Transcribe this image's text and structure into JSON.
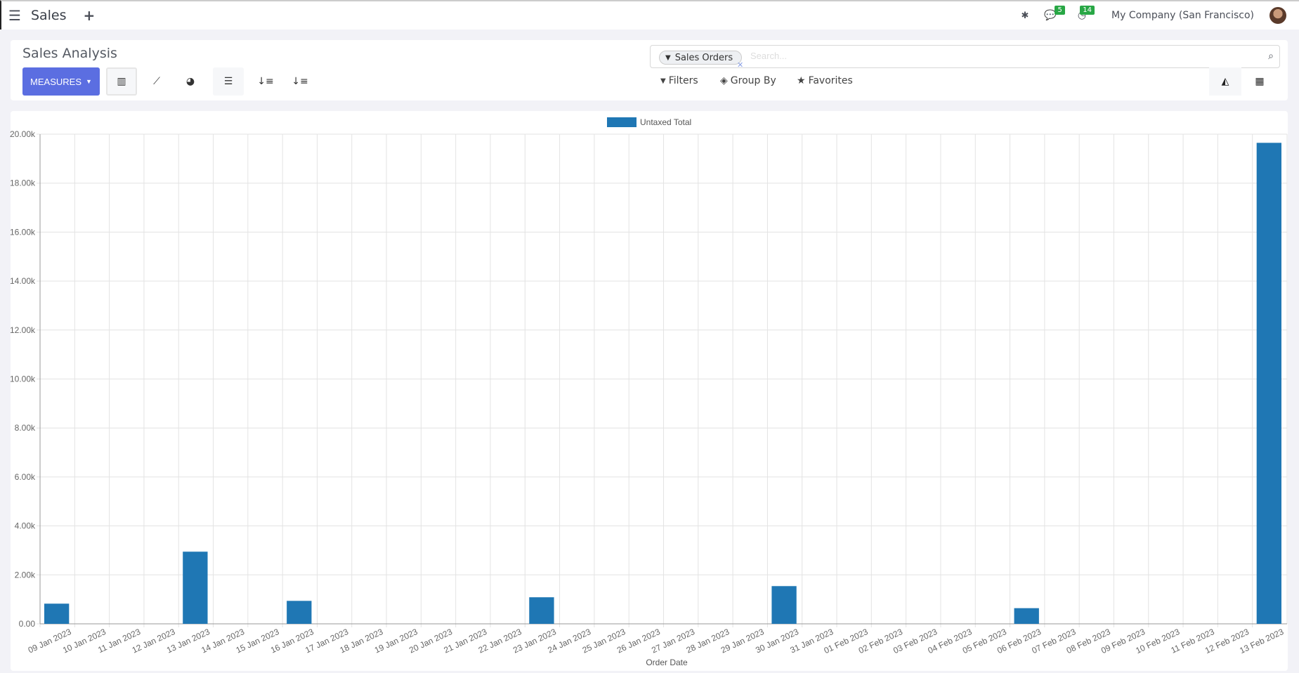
{
  "navbar": {
    "app_name": "Sales",
    "messages_count": "5",
    "activities_count": "14",
    "company": "My Company (San Francisco)"
  },
  "control_panel": {
    "title": "Sales Analysis",
    "measures_label": "MEASURES",
    "search": {
      "facet": "Sales Orders",
      "placeholder": "Search..."
    },
    "filters_label": "Filters",
    "group_by_label": "Group By",
    "favorites_label": "Favorites"
  },
  "chart_data": {
    "type": "bar",
    "xlabel": "Order Date",
    "ylabel": "",
    "ylim": [
      0,
      20000
    ],
    "yticks": [
      "0.00",
      "2.00k",
      "4.00k",
      "6.00k",
      "8.00k",
      "10.00k",
      "12.00k",
      "14.00k",
      "16.00k",
      "18.00k",
      "20.00k"
    ],
    "grid": true,
    "legend_position": "top",
    "color": "#1f77b4",
    "categories": [
      "09 Jan 2023",
      "10 Jan 2023",
      "11 Jan 2023",
      "12 Jan 2023",
      "13 Jan 2023",
      "14 Jan 2023",
      "15 Jan 2023",
      "16 Jan 2023",
      "17 Jan 2023",
      "18 Jan 2023",
      "19 Jan 2023",
      "20 Jan 2023",
      "21 Jan 2023",
      "22 Jan 2023",
      "23 Jan 2023",
      "24 Jan 2023",
      "25 Jan 2023",
      "26 Jan 2023",
      "27 Jan 2023",
      "28 Jan 2023",
      "29 Jan 2023",
      "30 Jan 2023",
      "31 Jan 2023",
      "01 Feb 2023",
      "02 Feb 2023",
      "03 Feb 2023",
      "04 Feb 2023",
      "05 Feb 2023",
      "06 Feb 2023",
      "07 Feb 2023",
      "08 Feb 2023",
      "09 Feb 2023",
      "10 Feb 2023",
      "11 Feb 2023",
      "12 Feb 2023",
      "13 Feb 2023"
    ],
    "series": [
      {
        "name": "Untaxed Total",
        "values": [
          824,
          0,
          0,
          0,
          2947,
          0,
          0,
          938,
          0,
          0,
          0,
          0,
          0,
          0,
          1085,
          0,
          0,
          0,
          0,
          0,
          0,
          1541,
          0,
          0,
          0,
          0,
          0,
          0,
          640,
          0,
          0,
          0,
          0,
          0,
          0,
          19647
        ]
      }
    ]
  }
}
